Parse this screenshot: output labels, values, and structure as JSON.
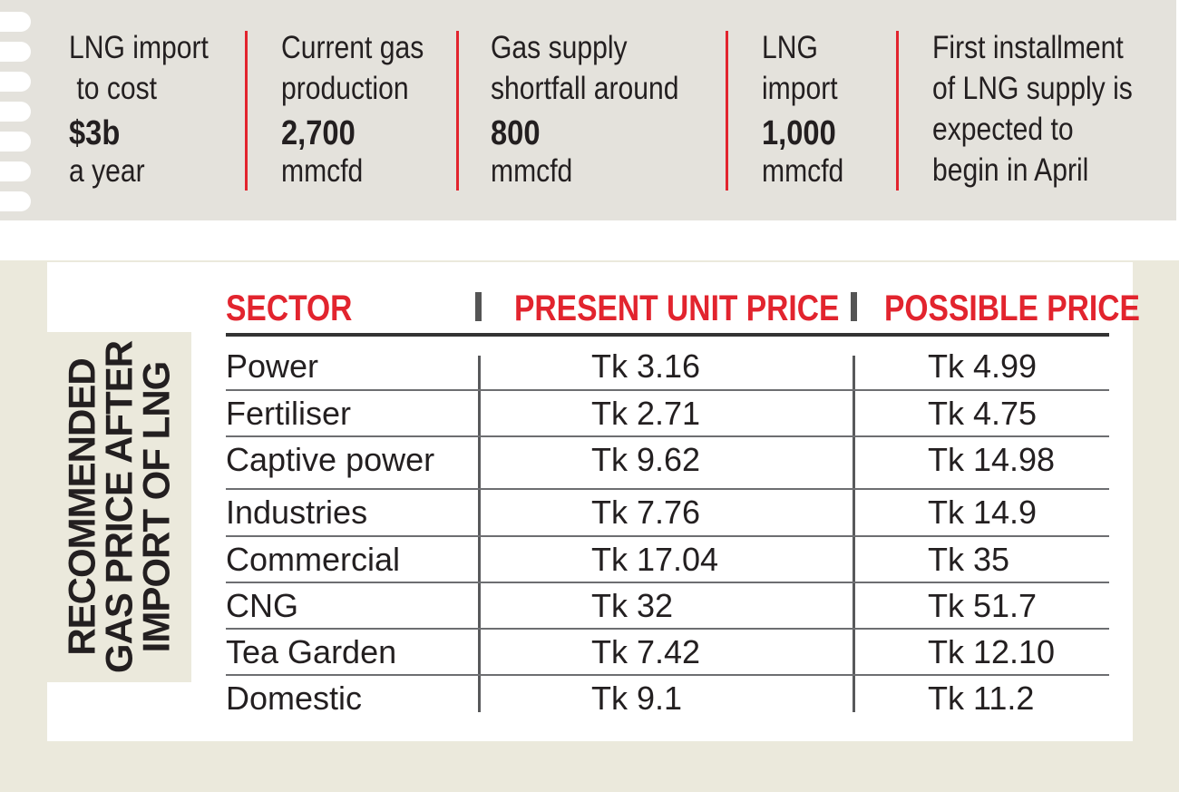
{
  "stats": [
    {
      "label_top": "LNG import\n to cost",
      "value": "$3b",
      "label_bottom": "a year"
    },
    {
      "label_top": "Current gas\nproduction",
      "value": "2,700",
      "label_bottom": "mmcfd"
    },
    {
      "label_top": "Gas supply\nshortfall around",
      "value": "800",
      "label_bottom": "mmcfd"
    },
    {
      "label_top": "LNG\nimport",
      "value": "1,000",
      "label_bottom": "mmcfd"
    },
    {
      "label_top": "First installment\nof LNG supply is\nexpected to\nbegin in April",
      "value": "",
      "label_bottom": ""
    }
  ],
  "side_title": "RECOMMENDED GAS PRICE AFTER IMPORT OF LNG",
  "colors": {
    "accent_red": "#e2242e",
    "band_gray": "#e4e2dc",
    "panel_beige": "#ebe9dc",
    "text": "#231f20"
  },
  "chart_data": {
    "type": "table",
    "title": "RECOMMENDED GAS PRICE AFTER IMPORT OF LNG",
    "columns": [
      "SECTOR",
      "PRESENT UNIT PRICE",
      "POSSIBLE PRICE"
    ],
    "rows": [
      [
        "Power",
        "Tk 3.16",
        "Tk 4.99"
      ],
      [
        "Fertiliser",
        "Tk 2.71",
        "Tk 4.75"
      ],
      [
        "Captive power",
        "Tk 9.62",
        "Tk 14.98"
      ],
      [
        "Industries",
        "Tk 7.76",
        "Tk 14.9"
      ],
      [
        "Commercial",
        "Tk 17.04",
        "Tk 35"
      ],
      [
        "CNG",
        "Tk 32",
        "Tk 51.7"
      ],
      [
        "Tea Garden",
        "Tk 7.42",
        "Tk 12.10"
      ],
      [
        "Domestic",
        "Tk 9.1",
        "Tk 11.2"
      ]
    ]
  }
}
